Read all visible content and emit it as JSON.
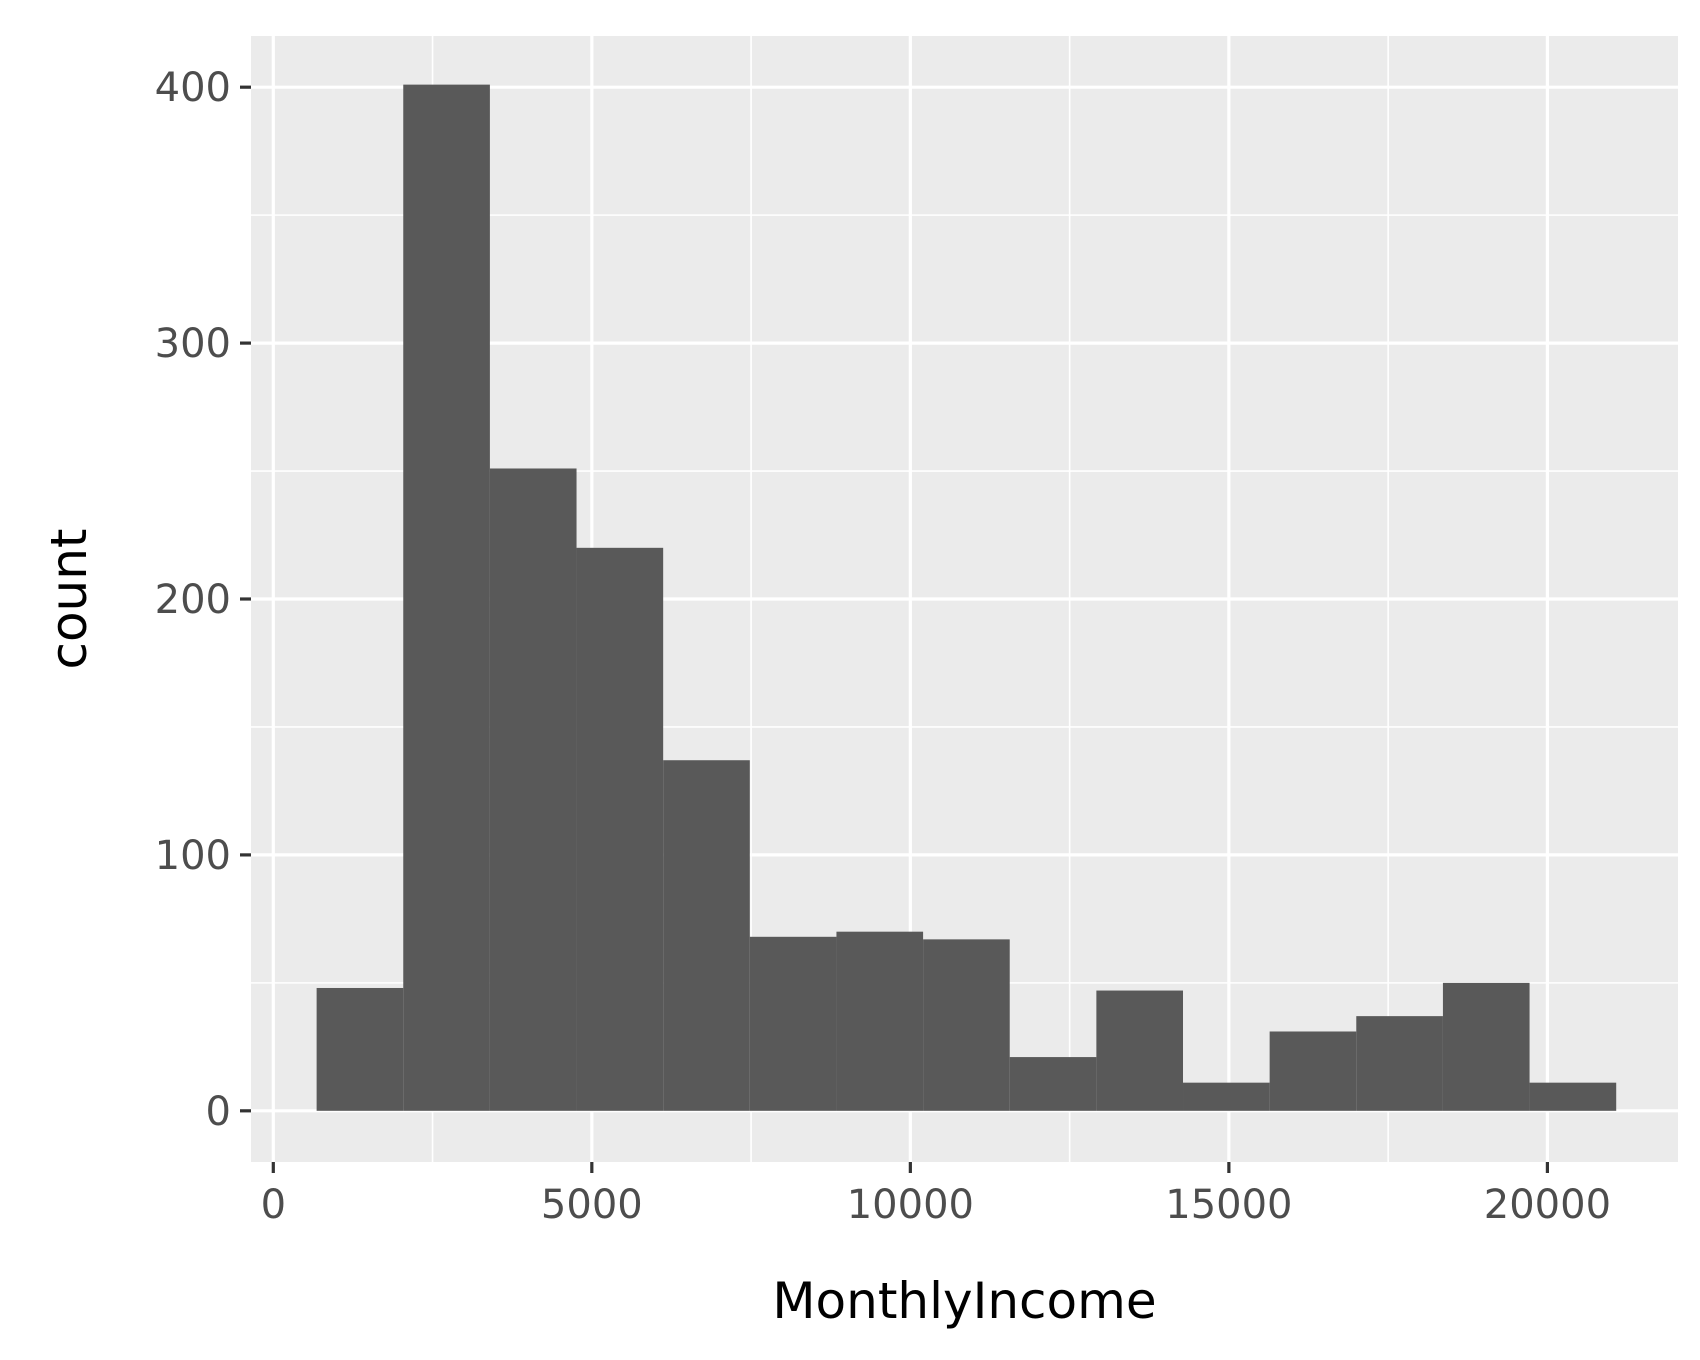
{
  "chart_data": {
    "type": "bar",
    "subtype": "histogram",
    "title": "",
    "xlabel": "MonthlyIncome",
    "ylabel": "count",
    "xlim": [
      -350,
      22050
    ],
    "ylim": [
      -20,
      420
    ],
    "x_ticks": [
      0,
      5000,
      10000,
      15000,
      20000
    ],
    "x_tick_labels": [
      "0",
      "5000",
      "10000",
      "15000",
      "20000"
    ],
    "y_ticks": [
      0,
      100,
      200,
      300,
      400
    ],
    "y_tick_labels": [
      "0",
      "100",
      "200",
      "300",
      "400"
    ],
    "x_minor_ticks": [
      2500,
      7500,
      12500,
      17500
    ],
    "y_minor_ticks": [
      50,
      150,
      250,
      350
    ],
    "bins": [
      {
        "x0": 680,
        "x1": 2040,
        "count": 48
      },
      {
        "x0": 2040,
        "x1": 3400,
        "count": 401
      },
      {
        "x0": 3400,
        "x1": 4760,
        "count": 251
      },
      {
        "x0": 4760,
        "x1": 6120,
        "count": 220
      },
      {
        "x0": 6120,
        "x1": 7480,
        "count": 137
      },
      {
        "x0": 7480,
        "x1": 8840,
        "count": 68
      },
      {
        "x0": 8840,
        "x1": 10200,
        "count": 70
      },
      {
        "x0": 10200,
        "x1": 11560,
        "count": 67
      },
      {
        "x0": 11560,
        "x1": 12920,
        "count": 21
      },
      {
        "x0": 12920,
        "x1": 14280,
        "count": 47
      },
      {
        "x0": 14280,
        "x1": 15640,
        "count": 11
      },
      {
        "x0": 15640,
        "x1": 17000,
        "count": 31
      },
      {
        "x0": 17000,
        "x1": 18360,
        "count": 37
      },
      {
        "x0": 18360,
        "x1": 19720,
        "count": 50
      },
      {
        "x0": 19720,
        "x1": 21080,
        "count": 11
      }
    ],
    "grid": true,
    "legend": "none",
    "colors": {
      "panel_background": "#ebebeb",
      "grid_line": "#ffffff",
      "bar_fill": "#595959",
      "tick_mark": "#333333",
      "tick_label": "#4d4d4d",
      "axis_title": "#000000"
    }
  }
}
